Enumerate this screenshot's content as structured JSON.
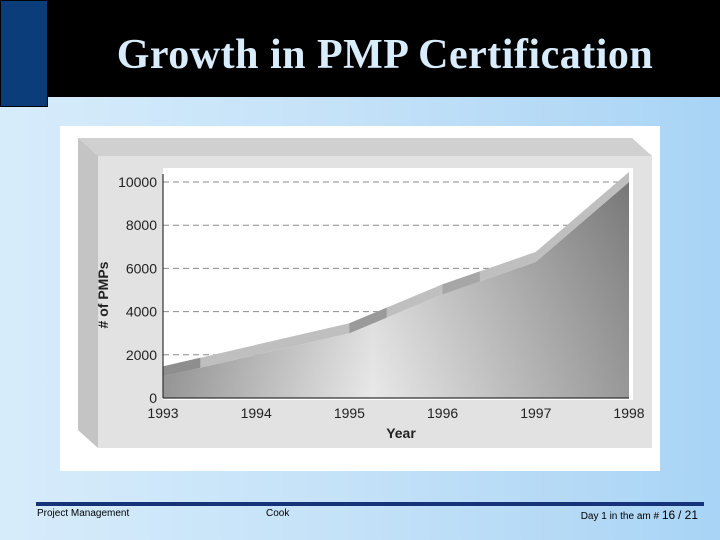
{
  "slide": {
    "title": "Growth in PMP Certification"
  },
  "footer": {
    "left": "Project Management",
    "center": "Cook",
    "right_prefix": "Day 1 in the am #",
    "page": "16",
    "total": "/ 21"
  },
  "colors": {
    "title_band": "#000000",
    "title_text": "#d9ecfb",
    "accent_block": "#0a3d7a",
    "footer_rule": "#16337a",
    "area_fill": "#9a9a9a",
    "band_fill": "#bdbdbd"
  },
  "chart_data": {
    "type": "area",
    "xlabel": "Year",
    "ylabel": "# of PMPs",
    "x": [
      1993,
      1994,
      1995,
      1996,
      1997,
      1998
    ],
    "values": [
      1000,
      2000,
      3000,
      4800,
      6300,
      10000
    ],
    "xlim": [
      1993,
      1998
    ],
    "ylim": [
      0,
      10000
    ],
    "yticks": [
      0,
      2000,
      4000,
      6000,
      8000,
      10000
    ],
    "ytick_labels": [
      "0",
      "2000",
      "4000",
      "6000",
      "8000",
      "10000"
    ],
    "xtick_labels": [
      "1993",
      "1994",
      "1995",
      "1996",
      "1997",
      "1998"
    ],
    "grid": "dashed horizontal",
    "legend": "none"
  }
}
